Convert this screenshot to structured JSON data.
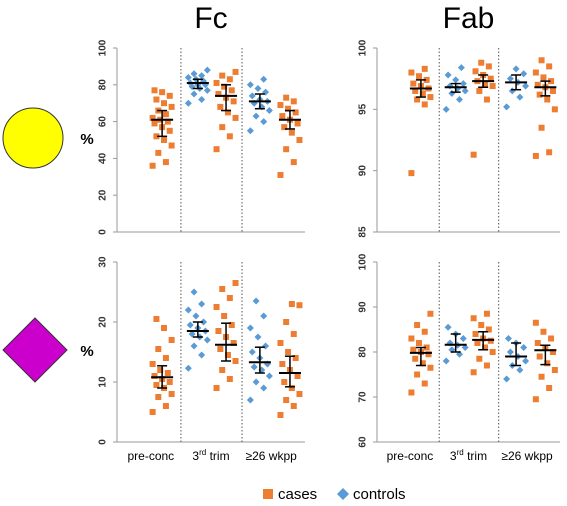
{
  "legend": [
    {
      "name": "cases",
      "color": "#ed7d31"
    },
    {
      "name": "controls",
      "color": "#5b9bd5"
    }
  ],
  "chart_data": [
    {
      "type": "strip",
      "title": "Fc",
      "y_label": "%",
      "ylim": [
        0,
        100
      ],
      "yticks": [
        0,
        20,
        40,
        60,
        80,
        100
      ],
      "cases": [
        {
          "values": [
            36,
            38,
            43,
            47,
            50,
            52,
            55,
            57,
            59,
            60,
            61,
            62,
            64,
            66,
            68,
            70,
            72,
            74,
            76,
            77
          ],
          "median": 61,
          "q1": 52,
          "q3": 66
        },
        {
          "values": [
            45,
            52,
            57,
            62,
            65,
            68,
            71,
            73,
            75,
            77,
            79,
            81,
            83,
            85,
            87
          ],
          "median": 74,
          "q1": 66,
          "q3": 80
        },
        {
          "values": [
            31,
            38,
            45,
            50,
            54,
            57,
            59,
            61,
            63,
            65,
            67,
            69,
            71,
            73
          ],
          "median": 61,
          "q1": 56,
          "q3": 66
        }
      ],
      "controls": [
        null,
        {
          "values": [
            70,
            72,
            75,
            77,
            78,
            79,
            80,
            80,
            81,
            82,
            83,
            84,
            85,
            86,
            88
          ],
          "median": 81,
          "q1": 78,
          "q3": 83
        },
        {
          "values": [
            55,
            60,
            63,
            66,
            68,
            70,
            71,
            72,
            74,
            76,
            78,
            80,
            83
          ],
          "median": 71,
          "q1": 67,
          "q3": 75
        }
      ]
    },
    {
      "type": "strip",
      "title": "Fab",
      "ylim": [
        85,
        100
      ],
      "yticks": [
        85,
        90,
        95,
        100
      ],
      "cases": [
        {
          "values": [
            89.8,
            95.4,
            95.8,
            96.0,
            96.3,
            96.5,
            96.7,
            96.9,
            97.1,
            97.4,
            97.7,
            98.0,
            98.3
          ],
          "median": 96.7,
          "q1": 96,
          "q3": 97.4
        },
        {
          "values": [
            91.3,
            95.8,
            96.5,
            96.9,
            97.1,
            97.3,
            97.5,
            97.8,
            98.1,
            98.5,
            98.8
          ],
          "median": 97.3,
          "q1": 96.8,
          "q3": 97.8
        },
        {
          "values": [
            91.2,
            91.5,
            93.5,
            95.0,
            95.8,
            96.2,
            96.5,
            96.8,
            97.0,
            97.3,
            97.6,
            98.0,
            98.5,
            99.0
          ],
          "median": 96.8,
          "q1": 96.1,
          "q3": 97.3
        }
      ],
      "controls": [
        null,
        {
          "values": [
            95.0,
            95.8,
            96.3,
            96.5,
            96.7,
            96.9,
            97.1,
            97.4,
            97.8,
            98.4
          ],
          "median": 96.8,
          "q1": 96.4,
          "q3": 97.1
        },
        {
          "values": [
            95.2,
            96.0,
            96.5,
            96.9,
            97.2,
            97.5,
            97.9,
            98.3
          ],
          "median": 97.2,
          "q1": 96.6,
          "q3": 97.8
        }
      ]
    },
    {
      "type": "strip",
      "y_label": "%",
      "ylim": [
        0,
        30
      ],
      "yticks": [
        0,
        10,
        20,
        30
      ],
      "categories": [
        "pre-conc",
        [
          "3",
          "rd",
          " trim"
        ],
        "≥26 wkpp"
      ],
      "cases": [
        {
          "values": [
            5,
            6,
            7.5,
            8,
            9,
            9.5,
            10,
            10.5,
            11,
            11.5,
            12,
            13,
            14,
            15.5,
            17,
            19,
            20.5
          ],
          "median": 10.8,
          "q1": 9,
          "q3": 12.7
        },
        {
          "values": [
            9,
            10.5,
            12,
            13.5,
            14.5,
            15.5,
            16.5,
            17.5,
            18.5,
            19.5,
            21,
            22.5,
            24,
            25.5,
            26.5
          ],
          "median": 16.2,
          "q1": 13.5,
          "q3": 19.8
        },
        {
          "values": [
            4.5,
            6,
            7,
            8,
            9,
            10,
            11,
            12,
            13,
            14,
            15,
            16.5,
            18,
            20,
            22.8,
            23
          ],
          "median": 11.5,
          "q1": 9.2,
          "q3": 14.3
        }
      ],
      "controls": [
        null,
        {
          "values": [
            12.3,
            14.5,
            16,
            17,
            17.5,
            18,
            18.5,
            19,
            19.5,
            20,
            21,
            22,
            23,
            25
          ],
          "median": 18.5,
          "q1": 17.5,
          "q3": 20
        },
        {
          "values": [
            7,
            9,
            10,
            11,
            12,
            12.5,
            13,
            14,
            15,
            16,
            17.5,
            19,
            21,
            23.5
          ],
          "median": 13.3,
          "q1": 11.5,
          "q3": 15.8
        }
      ]
    },
    {
      "type": "strip",
      "ylim": [
        60,
        100
      ],
      "yticks": [
        60,
        70,
        80,
        90,
        100
      ],
      "categories": [
        "pre-conc",
        [
          "3",
          "rd",
          " trim"
        ],
        "≥26 wkpp"
      ],
      "cases": [
        {
          "values": [
            71,
            73,
            75,
            76.5,
            77.5,
            78.5,
            79.5,
            80,
            80.5,
            81,
            82,
            83,
            84.5,
            86,
            88.5
          ],
          "median": 79.8,
          "q1": 77,
          "q3": 81
        },
        {
          "values": [
            75.5,
            77,
            78.5,
            80,
            81,
            82,
            82.5,
            83,
            84,
            85,
            86,
            87.5,
            88.5
          ],
          "median": 82.7,
          "q1": 80.5,
          "q3": 84.5
        },
        {
          "values": [
            69.5,
            72,
            74.5,
            76,
            77.5,
            79,
            80,
            81,
            82,
            83,
            84.5,
            86.5
          ],
          "median": 80.4,
          "q1": 77.2,
          "q3": 81.5
        }
      ],
      "controls": [
        null,
        {
          "values": [
            78,
            79.5,
            80.5,
            81,
            81.5,
            82,
            83,
            84,
            85.5
          ],
          "median": 81.6,
          "q1": 80,
          "q3": 84
        },
        {
          "values": [
            74,
            76,
            77,
            78,
            79,
            80,
            81,
            82,
            83
          ],
          "median": 79,
          "q1": 77,
          "q3": 82
        }
      ]
    }
  ]
}
